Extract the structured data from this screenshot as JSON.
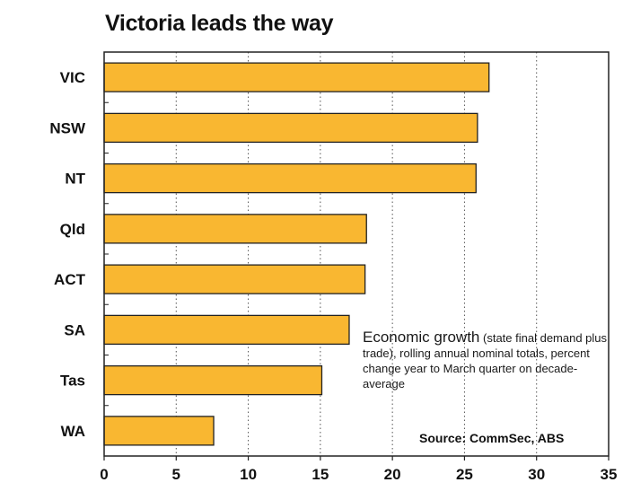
{
  "chart_data": {
    "type": "bar",
    "orientation": "horizontal",
    "title": "Victoria leads the way",
    "categories": [
      "VIC",
      "NSW",
      "NT",
      "Qld",
      "ACT",
      "SA",
      "Tas",
      "WA"
    ],
    "values": [
      26.7,
      25.9,
      25.8,
      18.2,
      18.1,
      17.0,
      15.1,
      7.6
    ],
    "xlim": [
      0,
      35
    ],
    "xticks": [
      0,
      5,
      10,
      15,
      20,
      25,
      30,
      35
    ],
    "grid": "vertical dotted",
    "bar_color": "#F9B731",
    "bar_edge_color": "#222222",
    "annotation": {
      "main": "Economic growth",
      "detail": " (state final demand plus trade), rolling annual nominal totals, percent change year to March quarter on decade-average"
    },
    "source": "Source: CommSec, ABS"
  }
}
